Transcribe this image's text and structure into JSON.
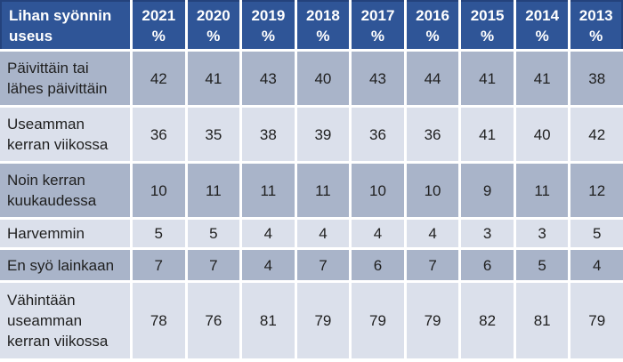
{
  "table": {
    "header": {
      "label": "Lihan syönnin useus",
      "years": [
        "2021",
        "2020",
        "2019",
        "2018",
        "2017",
        "2016",
        "2015",
        "2014",
        "2013"
      ],
      "unit": "%"
    },
    "rows": [
      {
        "label": "Päivittäin tai lähes päivittäin",
        "values": [
          42,
          41,
          43,
          40,
          43,
          44,
          41,
          41,
          38
        ]
      },
      {
        "label": "Useamman kerran viikossa",
        "values": [
          36,
          35,
          38,
          39,
          36,
          36,
          41,
          40,
          42
        ]
      },
      {
        "label": "Noin kerran kuukaudessa",
        "values": [
          10,
          11,
          11,
          11,
          10,
          10,
          9,
          11,
          12
        ]
      },
      {
        "label": "Harvemmin",
        "values": [
          5,
          5,
          4,
          4,
          4,
          4,
          3,
          3,
          5
        ]
      },
      {
        "label": "En syö lainkaan",
        "values": [
          7,
          7,
          4,
          7,
          6,
          7,
          6,
          5,
          4
        ]
      },
      {
        "label": "Vähintään useamman kerran viikossa",
        "values": [
          78,
          76,
          81,
          79,
          79,
          79,
          82,
          81,
          79
        ]
      }
    ],
    "colors": {
      "header_bg": "#2F5597",
      "header_text": "#FFFFFF",
      "header_border": "#24427C",
      "band_dark": "#A9B4C9",
      "band_light": "#DBE0EB",
      "text": "#1F1F1F"
    }
  },
  "chart_data": {
    "type": "table",
    "title": "Lihan syönnin useus",
    "columns": [
      "Lihan syönnin useus",
      "2021 %",
      "2020 %",
      "2019 %",
      "2018 %",
      "2017 %",
      "2016 %",
      "2015 %",
      "2014 %",
      "2013 %"
    ],
    "rows": [
      [
        "Päivittäin tai lähes päivittäin",
        42,
        41,
        43,
        40,
        43,
        44,
        41,
        41,
        38
      ],
      [
        "Useamman kerran viikossa",
        36,
        35,
        38,
        39,
        36,
        36,
        41,
        40,
        42
      ],
      [
        "Noin kerran kuukaudessa",
        10,
        11,
        11,
        11,
        10,
        10,
        9,
        11,
        12
      ],
      [
        "Harvemmin",
        5,
        5,
        4,
        4,
        4,
        4,
        3,
        3,
        5
      ],
      [
        "En syö lainkaan",
        7,
        7,
        4,
        7,
        6,
        7,
        6,
        5,
        4
      ],
      [
        "Vähintään useamman kerran viikossa",
        78,
        76,
        81,
        79,
        79,
        79,
        82,
        81,
        79
      ]
    ]
  }
}
